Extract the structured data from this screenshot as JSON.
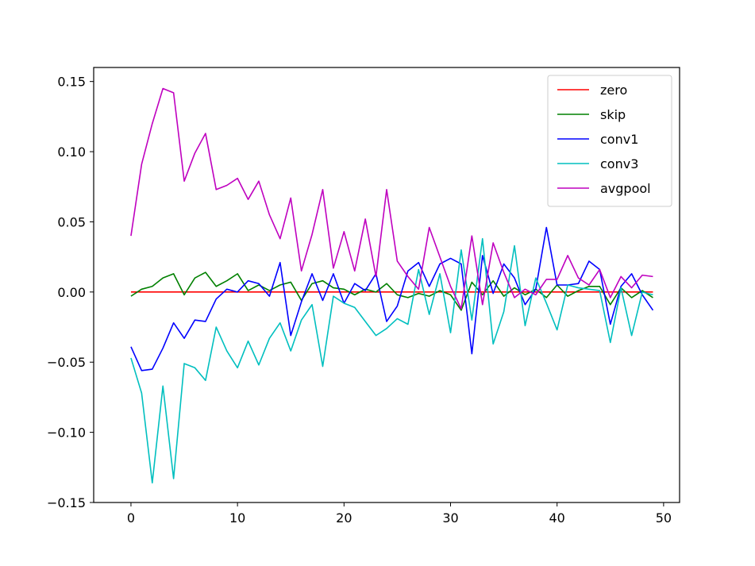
{
  "chart_data": {
    "type": "line",
    "title": "",
    "xlabel": "",
    "ylabel": "",
    "xlim": [
      -3.5,
      51.5
    ],
    "ylim": [
      -0.15,
      0.16
    ],
    "xticks": [
      0,
      10,
      20,
      30,
      40,
      50
    ],
    "xtick_labels": [
      "0",
      "10",
      "20",
      "30",
      "40",
      "50"
    ],
    "yticks": [
      -0.15,
      -0.1,
      -0.05,
      0.0,
      0.05,
      0.1,
      0.15
    ],
    "ytick_labels": [
      "−0.15",
      "−0.10",
      "−0.05",
      "0.00",
      "0.05",
      "0.10",
      "0.15"
    ],
    "grid": false,
    "legend": "top-right",
    "x": [
      0,
      1,
      2,
      3,
      4,
      5,
      6,
      7,
      8,
      9,
      10,
      11,
      12,
      13,
      14,
      15,
      16,
      17,
      18,
      19,
      20,
      21,
      22,
      23,
      24,
      25,
      26,
      27,
      28,
      29,
      30,
      31,
      32,
      33,
      34,
      35,
      36,
      37,
      38,
      39,
      40,
      41,
      42,
      43,
      44,
      45,
      46,
      47,
      48,
      49
    ],
    "series": [
      {
        "name": "zero",
        "color": "#ff0000",
        "values": [
          0,
          0,
          0,
          0,
          0,
          0,
          0,
          0,
          0,
          0,
          0,
          0,
          0,
          0,
          0,
          0,
          0,
          0,
          0,
          0,
          0,
          0,
          0,
          0,
          0,
          0,
          0,
          0,
          0,
          0,
          0,
          0,
          0,
          0,
          0,
          0,
          0,
          0,
          0,
          0,
          0,
          0,
          0,
          0,
          0,
          0,
          0,
          0,
          0,
          0
        ]
      },
      {
        "name": "skip",
        "color": "#008000",
        "values": [
          -0.003,
          0.002,
          0.004,
          0.01,
          0.013,
          -0.002,
          0.01,
          0.014,
          0.004,
          0.008,
          0.013,
          0.001,
          0.005,
          0.001,
          0.005,
          0.007,
          -0.006,
          0.006,
          0.008,
          0.003,
          0.002,
          -0.002,
          0.002,
          0.0,
          0.006,
          -0.002,
          -0.004,
          -0.001,
          -0.003,
          0.001,
          -0.002,
          -0.013,
          0.007,
          -0.002,
          0.008,
          -0.003,
          0.003,
          -0.002,
          0.002,
          -0.004,
          0.005,
          -0.003,
          0.001,
          0.004,
          0.004,
          -0.009,
          0.003,
          -0.004,
          0.001,
          -0.004
        ]
      },
      {
        "name": "conv1",
        "color": "#0000ff",
        "values": [
          -0.039,
          -0.056,
          -0.055,
          -0.04,
          -0.022,
          -0.033,
          -0.02,
          -0.021,
          -0.005,
          0.002,
          0.0,
          0.008,
          0.006,
          -0.003,
          0.021,
          -0.031,
          -0.007,
          0.013,
          -0.006,
          0.013,
          -0.008,
          0.006,
          0.001,
          0.013,
          -0.021,
          -0.01,
          0.015,
          0.021,
          0.004,
          0.02,
          0.024,
          0.02,
          -0.044,
          0.026,
          -0.001,
          0.02,
          0.01,
          -0.009,
          0.002,
          0.046,
          0.005,
          0.005,
          0.006,
          0.022,
          0.016,
          -0.023,
          0.004,
          0.013,
          -0.002,
          -0.013
        ]
      },
      {
        "name": "conv3",
        "color": "#00bfbf",
        "values": [
          -0.047,
          -0.072,
          -0.136,
          -0.067,
          -0.133,
          -0.051,
          -0.054,
          -0.063,
          -0.025,
          -0.042,
          -0.054,
          -0.035,
          -0.052,
          -0.033,
          -0.022,
          -0.042,
          -0.02,
          -0.009,
          -0.053,
          -0.003,
          -0.008,
          -0.011,
          -0.021,
          -0.031,
          -0.026,
          -0.019,
          -0.023,
          0.016,
          -0.016,
          0.013,
          -0.029,
          0.03,
          -0.02,
          0.038,
          -0.037,
          -0.014,
          0.033,
          -0.024,
          0.01,
          -0.008,
          -0.027,
          0.005,
          0.003,
          0.002,
          0.001,
          -0.036,
          0.003,
          -0.031,
          0.0,
          -0.002
        ]
      },
      {
        "name": "avgpool",
        "color": "#bf00bf",
        "values": [
          0.04,
          0.091,
          0.12,
          0.145,
          0.142,
          0.079,
          0.099,
          0.113,
          0.073,
          0.076,
          0.081,
          0.066,
          0.079,
          0.055,
          0.038,
          0.067,
          0.015,
          0.041,
          0.073,
          0.017,
          0.043,
          0.015,
          0.052,
          0.011,
          0.073,
          0.022,
          0.011,
          0.002,
          0.046,
          0.025,
          0.004,
          -0.012,
          0.04,
          -0.009,
          0.035,
          0.014,
          -0.004,
          0.002,
          -0.002,
          0.009,
          0.009,
          0.026,
          0.01,
          0.005,
          0.016,
          -0.004,
          0.011,
          0.003,
          0.012,
          0.011
        ]
      }
    ]
  }
}
